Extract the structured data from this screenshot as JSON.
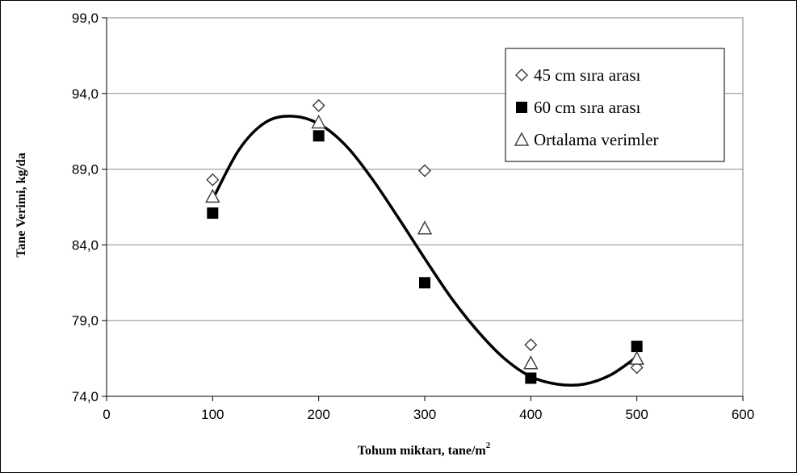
{
  "chart_data": {
    "type": "scatter",
    "title": "",
    "xlabel": "Tohum miktarı, tane/m",
    "xlabel_superscript": "2",
    "ylabel": "Tane Verimi, kg/da",
    "xlim": [
      0,
      600
    ],
    "ylim": [
      74.0,
      99.0
    ],
    "x_ticks": [
      "0",
      "100",
      "200",
      "300",
      "400",
      "500",
      "600"
    ],
    "y_ticks": [
      "74,0",
      "79,0",
      "84,0",
      "89,0",
      "94,0",
      "99,0"
    ],
    "grid": "horizontal",
    "legend_position": "top-right",
    "series": [
      {
        "name": "45 cm sıra arası",
        "marker": "diamond-open",
        "x": [
          100,
          200,
          300,
          400,
          500
        ],
        "y": [
          88.3,
          93.2,
          88.9,
          77.4,
          75.9
        ]
      },
      {
        "name": "60 cm sıra arası",
        "marker": "square-filled",
        "x": [
          100,
          200,
          300,
          400,
          500
        ],
        "y": [
          86.1,
          91.2,
          81.5,
          75.2,
          77.3
        ]
      },
      {
        "name": "Ortalama verimler",
        "marker": "triangle-open",
        "x": [
          100,
          200,
          300,
          400,
          500
        ],
        "y": [
          87.2,
          92.1,
          85.1,
          76.2,
          76.5
        ]
      }
    ],
    "trendline": {
      "x": [
        100,
        125,
        150,
        175,
        200,
        225,
        250,
        275,
        300,
        325,
        350,
        375,
        400,
        425,
        450,
        475,
        500
      ],
      "y": [
        87.0,
        90.3,
        92.1,
        92.5,
        92.0,
        90.6,
        88.4,
        85.8,
        83.1,
        80.5,
        78.3,
        76.5,
        75.3,
        74.8,
        74.8,
        75.4,
        76.6
      ]
    }
  }
}
